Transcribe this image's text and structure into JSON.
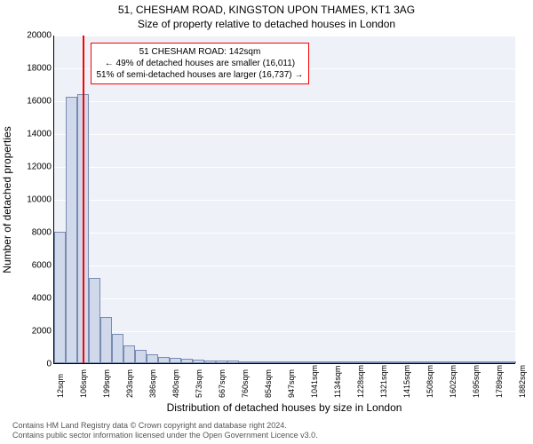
{
  "chart": {
    "type": "histogram",
    "title": "51, CHESHAM ROAD, KINGSTON UPON THAMES, KT1 3AG",
    "subtitle": "Size of property relative to detached houses in London",
    "xlabel": "Distribution of detached houses by size in London",
    "ylabel": "Number of detached properties",
    "background_color": "#eef1f7",
    "grid_color": "#ffffff",
    "bar_fill": "#cfd9eb",
    "bar_border": "#7a8bb0",
    "marker_color": "#ff0000",
    "annotation_border": "#ff0000",
    "ylim": [
      0,
      20000
    ],
    "ytick_step": 2000,
    "y_ticks": [
      0,
      2000,
      4000,
      6000,
      8000,
      10000,
      12000,
      14000,
      16000,
      18000,
      20000
    ],
    "x_tick_labels": [
      "12sqm",
      "106sqm",
      "199sqm",
      "293sqm",
      "386sqm",
      "480sqm",
      "573sqm",
      "667sqm",
      "760sqm",
      "854sqm",
      "947sqm",
      "1041sqm",
      "1134sqm",
      "1228sqm",
      "1321sqm",
      "1415sqm",
      "1508sqm",
      "1602sqm",
      "1695sqm",
      "1789sqm",
      "1882sqm"
    ],
    "bars": [
      8000,
      16200,
      16400,
      5200,
      2800,
      1800,
      1100,
      800,
      550,
      400,
      320,
      260,
      220,
      190,
      160,
      140,
      120,
      105,
      90,
      80,
      70,
      62,
      55,
      48,
      42,
      38,
      34,
      30,
      27,
      24,
      21,
      19,
      17,
      15,
      13,
      12,
      11,
      10,
      9,
      8
    ],
    "marker_value_sqm": 142,
    "marker_bar_index": 2,
    "annotation": {
      "line1": "51 CHESHAM ROAD: 142sqm",
      "line2": "← 49% of detached houses are smaller (16,011)",
      "line3": "51% of semi-detached houses are larger (16,737) →"
    },
    "title_fontsize": 12,
    "label_fontsize": 12,
    "tick_fontsize": 10
  },
  "footer": {
    "line1": "Contains HM Land Registry data © Crown copyright and database right 2024.",
    "line2": "Contains public sector information licensed under the Open Government Licence v3.0."
  }
}
